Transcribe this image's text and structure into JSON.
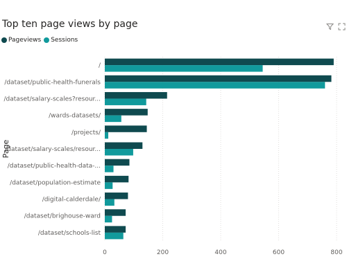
{
  "header": {
    "filter_icon": "filter-icon",
    "focus_icon": "focus-mode-icon"
  },
  "chart_data": {
    "type": "bar",
    "orientation": "horizontal",
    "title": "Top ten page views by page",
    "ylabel": "Page",
    "xlabel": "",
    "xlim": [
      0,
      800
    ],
    "xticks": [
      0,
      200,
      400,
      600,
      800
    ],
    "grid": true,
    "legend_position": "top-left",
    "categories": [
      "/",
      "/dataset/public-health-funerals",
      "/dataset/salary-scales?resour...",
      "/wards-datasets/",
      "/projects/",
      "/dataset/salary-scales/resour...",
      "/dataset/public-health-data-...",
      "/dataset/population-estimate",
      "/digital-calderdale/",
      "/dataset/brighouse-ward",
      "/dataset/schools-list"
    ],
    "series": [
      {
        "name": "Pageviews",
        "color": "#0f4a4f",
        "values": [
          790,
          782,
          215,
          148,
          145,
          130,
          85,
          82,
          80,
          72,
          72
        ]
      },
      {
        "name": "Sessions",
        "color": "#119a9c",
        "values": [
          545,
          760,
          143,
          57,
          12,
          98,
          30,
          27,
          33,
          25,
          64
        ]
      }
    ]
  }
}
